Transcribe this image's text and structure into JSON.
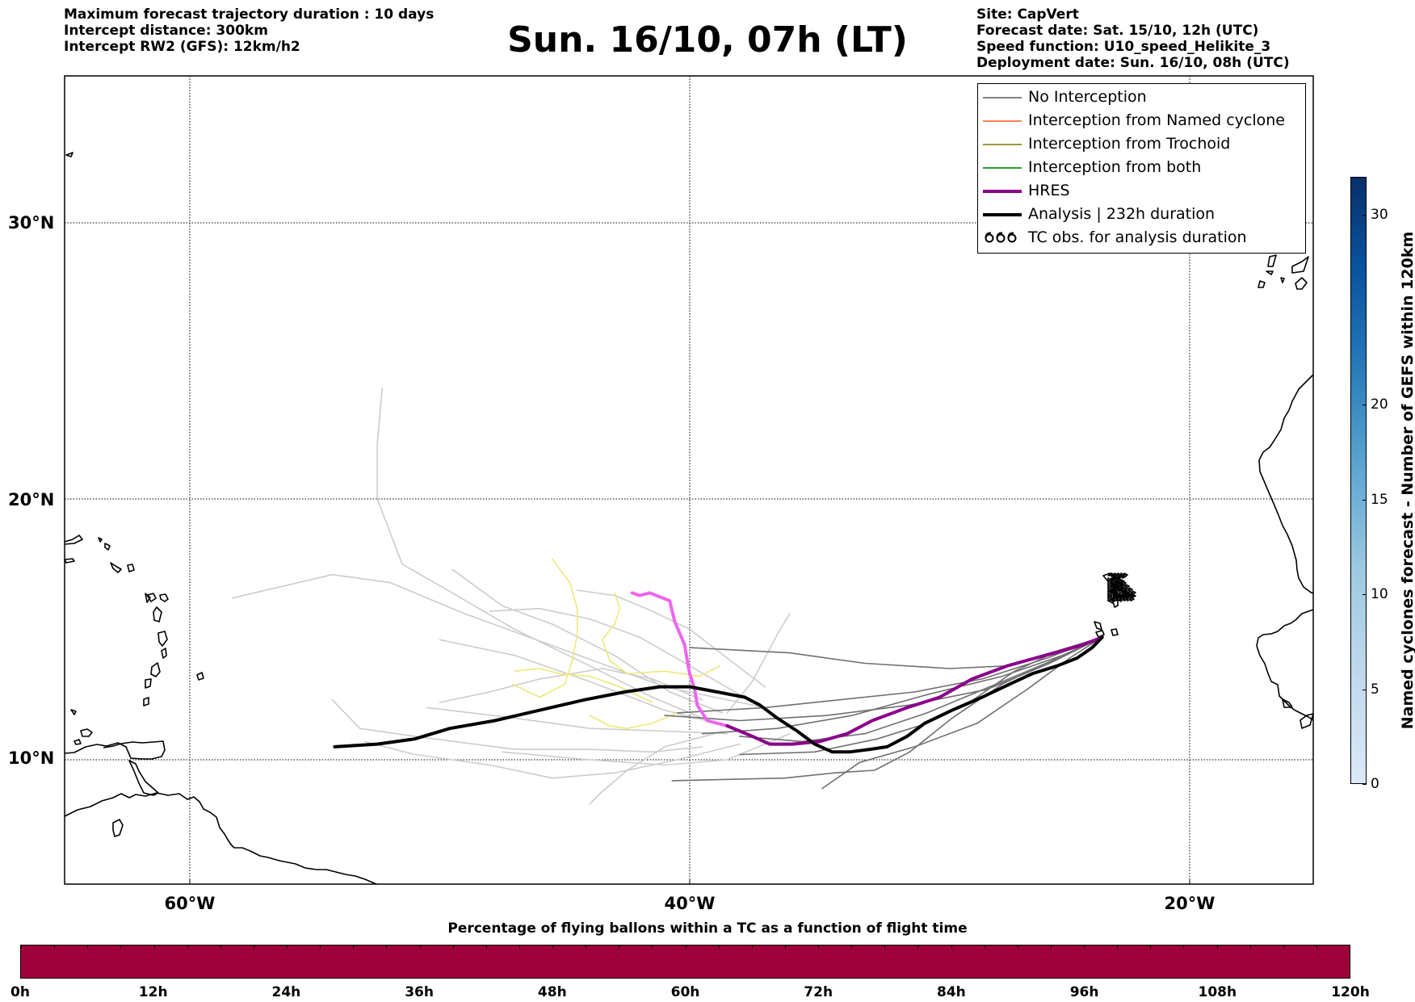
{
  "header": {
    "left_lines": [
      "Maximum forecast trajectory duration : 10 days",
      "Intercept distance: 300km",
      "Intercept RW2 (GFS):  12km/h2"
    ],
    "title": "Sun. 16/10, 07h (LT)",
    "right_lines": [
      "Site: CapVert",
      "Forecast date: Sat. 15/10, 12h (UTC)",
      "Speed function: U10_speed_Helikite_3",
      "Deployment date: Sun. 16/10, 08h (UTC)"
    ]
  },
  "map": {
    "lat_labels": [
      "30°N",
      "20°N",
      "10°N"
    ],
    "lon_labels": [
      "60°W",
      "40°W",
      "20°W"
    ],
    "lat_values": [
      30,
      20,
      10
    ],
    "lon_values": [
      -60,
      -40,
      -20
    ],
    "extent": {
      "lon_min": -65,
      "lon_max": -15,
      "lat_min": 2.2,
      "lat_max": 35.5
    },
    "gridlines": true,
    "coastline_color": "#000000"
  },
  "legend": {
    "placement": "top-right",
    "items": [
      {
        "label": "No Interception",
        "color": "#808080",
        "style": "thin-line"
      },
      {
        "label": "Interception from Named cyclone",
        "color": "#ff7f50",
        "style": "thin-line"
      },
      {
        "label": "Interception from Trochoid",
        "color": "#9a9a40",
        "style": "thin-line"
      },
      {
        "label": "Interception from both",
        "color": "#2ca02c",
        "style": "thin-line"
      },
      {
        "label": "HRES",
        "color": "#8b008b",
        "style": "thick-line"
      },
      {
        "label": "Analysis | 232h duration",
        "color": "#000000",
        "style": "thick-line"
      },
      {
        "label": "TC obs. for analysis duration",
        "color": "#000000",
        "style": "cyclone-symbol"
      }
    ]
  },
  "bottom_bar": {
    "title": "Percentage of flying ballons within a TC as a function of flight time",
    "color": "#9e003a",
    "tick_labels": [
      "0h",
      "12h",
      "24h",
      "36h",
      "48h",
      "60h",
      "72h",
      "84h",
      "96h",
      "108h",
      "120h"
    ],
    "minor_tick_count": 40
  },
  "colorbar": {
    "title": "Named cyclones forecast - Number of GEFS within 120km",
    "range": [
      0,
      32
    ],
    "tick_values": [
      0,
      5,
      10,
      15,
      20,
      30
    ],
    "tick_labels": [
      "0",
      "5",
      "10",
      "15",
      "20",
      "30"
    ],
    "colormap": "Blues"
  },
  "chart_data": {
    "type": "map-trajectories",
    "deployment_site": {
      "lon": -23.5,
      "lat": 14.7
    },
    "analysis_track": {
      "color": "#000000",
      "points": [
        [
          -54.2,
          10.5
        ],
        [
          -52.5,
          10.6
        ],
        [
          -51,
          10.8
        ],
        [
          -49.6,
          11.2
        ],
        [
          -47.8,
          11.5
        ],
        [
          -46,
          11.9
        ],
        [
          -44.2,
          12.3
        ],
        [
          -42.6,
          12.6
        ],
        [
          -41.2,
          12.8
        ],
        [
          -40,
          12.8
        ],
        [
          -38.9,
          12.6
        ],
        [
          -37.8,
          12.4
        ],
        [
          -37.2,
          12.1
        ],
        [
          -36.5,
          11.6
        ],
        [
          -35.7,
          11.1
        ],
        [
          -35,
          10.6
        ],
        [
          -34.3,
          10.3
        ],
        [
          -33.6,
          10.3
        ],
        [
          -32.8,
          10.4
        ],
        [
          -32.1,
          10.5
        ],
        [
          -31.3,
          10.9
        ],
        [
          -30.6,
          11.4
        ],
        [
          -29.5,
          11.9
        ],
        [
          -28.3,
          12.4
        ],
        [
          -27.2,
          12.9
        ],
        [
          -26.3,
          13.3
        ],
        [
          -25.3,
          13.6
        ],
        [
          -24.5,
          13.9
        ],
        [
          -23.9,
          14.3
        ],
        [
          -23.5,
          14.7
        ]
      ]
    },
    "hres_track": {
      "color": "#8b008b",
      "points": [
        [
          -23.5,
          14.7
        ],
        [
          -24.3,
          14.4
        ],
        [
          -25.8,
          14
        ],
        [
          -27.3,
          13.6
        ],
        [
          -28.7,
          13.1
        ],
        [
          -30,
          12.4
        ],
        [
          -31.3,
          12
        ],
        [
          -32.7,
          11.5
        ],
        [
          -33.7,
          11
        ],
        [
          -34.8,
          10.7
        ],
        [
          -35.9,
          10.6
        ],
        [
          -36.8,
          10.6
        ],
        [
          -37.5,
          10.9
        ],
        [
          -38.5,
          11.3
        ]
      ]
    },
    "hres_faded_track": {
      "color": "#ee66ee",
      "points": [
        [
          -38.5,
          11.3
        ],
        [
          -39.3,
          11.5
        ],
        [
          -39.7,
          12.1
        ],
        [
          -39.8,
          12.7
        ],
        [
          -40,
          13.3
        ],
        [
          -40.1,
          13.8
        ],
        [
          -40.2,
          14.4
        ],
        [
          -40.6,
          15.3
        ],
        [
          -40.8,
          16.1
        ],
        [
          -41.6,
          16.4
        ],
        [
          -42,
          16.3
        ],
        [
          -42.3,
          16.4
        ]
      ]
    },
    "ensemble_tracks_dark": [
      [
        [
          -23.5,
          14.7
        ],
        [
          -25.1,
          14
        ],
        [
          -27.5,
          13.2
        ],
        [
          -30.5,
          12.5
        ],
        [
          -33.5,
          11.7
        ],
        [
          -36.5,
          11.2
        ],
        [
          -39.5,
          11
        ]
      ],
      [
        [
          -23.5,
          14.7
        ],
        [
          -25.5,
          13.8
        ],
        [
          -28,
          12.8
        ],
        [
          -30.5,
          11.8
        ],
        [
          -33,
          11
        ],
        [
          -35.5,
          10.7
        ],
        [
          -38,
          10.9
        ]
      ],
      [
        [
          -23.5,
          14.7
        ],
        [
          -25.2,
          14.1
        ],
        [
          -27.3,
          13.6
        ],
        [
          -29.6,
          13.5
        ],
        [
          -33,
          13.7
        ],
        [
          -36,
          14.1
        ],
        [
          -40,
          14.3
        ]
      ],
      [
        [
          -23.5,
          14.7
        ],
        [
          -25.7,
          13.9
        ],
        [
          -28.3,
          13.1
        ],
        [
          -31,
          12.6
        ],
        [
          -34,
          12.3
        ],
        [
          -37,
          12
        ],
        [
          -40.5,
          11.8
        ]
      ],
      [
        [
          -23.5,
          14.7
        ],
        [
          -25.3,
          13.9
        ],
        [
          -27.5,
          12.9
        ],
        [
          -29.5,
          11.6
        ],
        [
          -31.2,
          10.3
        ],
        [
          -32.6,
          9.6
        ],
        [
          -34.2,
          9.5
        ],
        [
          -36.2,
          9.3
        ],
        [
          -40.7,
          9.2
        ]
      ],
      [
        [
          -23.5,
          14.7
        ],
        [
          -24.8,
          13.9
        ],
        [
          -26.5,
          12.7
        ],
        [
          -28.5,
          11.4
        ],
        [
          -31,
          10.5
        ],
        [
          -33.2,
          9.9
        ],
        [
          -34.7,
          8.9
        ]
      ],
      [
        [
          -23.5,
          14.7
        ],
        [
          -25.2,
          14.2
        ],
        [
          -27,
          13.4
        ],
        [
          -28.8,
          12.2
        ],
        [
          -30.5,
          11.4
        ],
        [
          -32.5,
          10.8
        ],
        [
          -35,
          10.3
        ],
        [
          -38,
          10.2
        ]
      ],
      [
        [
          -23.5,
          14.7
        ],
        [
          -25.6,
          13.7
        ],
        [
          -28.1,
          12.7
        ],
        [
          -31.2,
          12.1
        ],
        [
          -34.5,
          11.7
        ],
        [
          -38,
          11.5
        ],
        [
          -41,
          11.7
        ]
      ]
    ],
    "ensemble_tracks_light": [
      [
        [
          -38.5,
          11.3
        ],
        [
          -41,
          11.9
        ],
        [
          -44,
          13
        ],
        [
          -47,
          14
        ],
        [
          -50,
          14.6
        ]
      ],
      [
        [
          -38.5,
          11
        ],
        [
          -41,
          11.1
        ],
        [
          -44,
          11.2
        ],
        [
          -47,
          11.6
        ],
        [
          -50.5,
          12
        ]
      ],
      [
        [
          -39,
          11.4
        ],
        [
          -41.5,
          12.4
        ],
        [
          -44,
          13.6
        ],
        [
          -47,
          15
        ],
        [
          -49.5,
          16.4
        ],
        [
          -51.5,
          17.5
        ],
        [
          -52.5,
          20
        ],
        [
          -52.5,
          22
        ],
        [
          -52.3,
          24
        ]
      ],
      [
        [
          -37,
          12
        ],
        [
          -41,
          12.8
        ],
        [
          -45,
          14.2
        ],
        [
          -49,
          15.6
        ],
        [
          -52,
          16.8
        ],
        [
          -54.3,
          17.1
        ],
        [
          -58.3,
          16.2
        ]
      ],
      [
        [
          -39.5,
          10.5
        ],
        [
          -41.5,
          10.3
        ],
        [
          -44,
          10.4
        ],
        [
          -47,
          10.4
        ],
        [
          -51,
          10.9
        ],
        [
          -53.2,
          11.2
        ],
        [
          -54.3,
          12.3
        ]
      ],
      [
        [
          -38,
          10.6
        ],
        [
          -40.5,
          10
        ],
        [
          -43,
          9.5
        ],
        [
          -45.5,
          9.3
        ],
        [
          -48,
          9.8
        ],
        [
          -51,
          10.2
        ],
        [
          -53,
          10.7
        ]
      ],
      [
        [
          -39,
          11
        ],
        [
          -41,
          10.5
        ],
        [
          -42.5,
          9.6
        ],
        [
          -43.6,
          8.7
        ],
        [
          -44,
          8.3
        ]
      ],
      [
        [
          -38.7,
          11.8
        ],
        [
          -40.8,
          12.6
        ],
        [
          -43,
          14
        ],
        [
          -45.5,
          15.2
        ],
        [
          -47.5,
          15.9
        ],
        [
          -49.5,
          17.3
        ]
      ],
      [
        [
          -36,
          11
        ],
        [
          -38.5,
          10
        ],
        [
          -41,
          9.8
        ],
        [
          -44,
          10
        ],
        [
          -47.5,
          10.3
        ]
      ],
      [
        [
          -38,
          12.5
        ],
        [
          -40,
          13.6
        ],
        [
          -42,
          14.7
        ],
        [
          -44,
          15.4
        ],
        [
          -46,
          15.8
        ],
        [
          -48,
          15.7
        ]
      ],
      [
        [
          -37,
          12.8
        ],
        [
          -38.5,
          13.9
        ],
        [
          -40,
          15
        ],
        [
          -41.5,
          15.7
        ],
        [
          -43,
          16.3
        ],
        [
          -44.5,
          16.5
        ]
      ],
      [
        [
          -38.5,
          11.8
        ],
        [
          -37.5,
          13
        ],
        [
          -36.5,
          14.8
        ],
        [
          -36,
          15.6
        ]
      ],
      [
        [
          -39.5,
          12.3
        ],
        [
          -41.5,
          13.1
        ],
        [
          -43.5,
          13.5
        ],
        [
          -46,
          13.1
        ],
        [
          -48,
          12.6
        ],
        [
          -50,
          12.2
        ]
      ]
    ],
    "ensemble_tracks_yellow": [
      [
        [
          -43,
          16.4
        ],
        [
          -42.8,
          15.8
        ],
        [
          -43,
          15.2
        ],
        [
          -43.5,
          14.6
        ],
        [
          -43.2,
          13.8
        ],
        [
          -42.5,
          13.3
        ],
        [
          -41,
          13.4
        ],
        [
          -39.6,
          13.2
        ],
        [
          -38.8,
          13.6
        ]
      ],
      [
        [
          -45.5,
          17.7
        ],
        [
          -44.8,
          16.8
        ],
        [
          -44.5,
          15.8
        ],
        [
          -44.5,
          14.8
        ],
        [
          -44.7,
          13.8
        ],
        [
          -45,
          12.9
        ],
        [
          -46,
          12.4
        ],
        [
          -47.1,
          12.9
        ]
      ],
      [
        [
          -41.5,
          12.2
        ],
        [
          -42.8,
          12.8
        ],
        [
          -44,
          13.2
        ],
        [
          -45.2,
          13.3
        ],
        [
          -46,
          13.5
        ],
        [
          -47,
          13.4
        ]
      ],
      [
        [
          -40.5,
          11.8
        ],
        [
          -41.5,
          11.4
        ],
        [
          -42.5,
          11.2
        ],
        [
          -43.2,
          11.3
        ],
        [
          -44,
          11.7
        ]
      ]
    ]
  }
}
